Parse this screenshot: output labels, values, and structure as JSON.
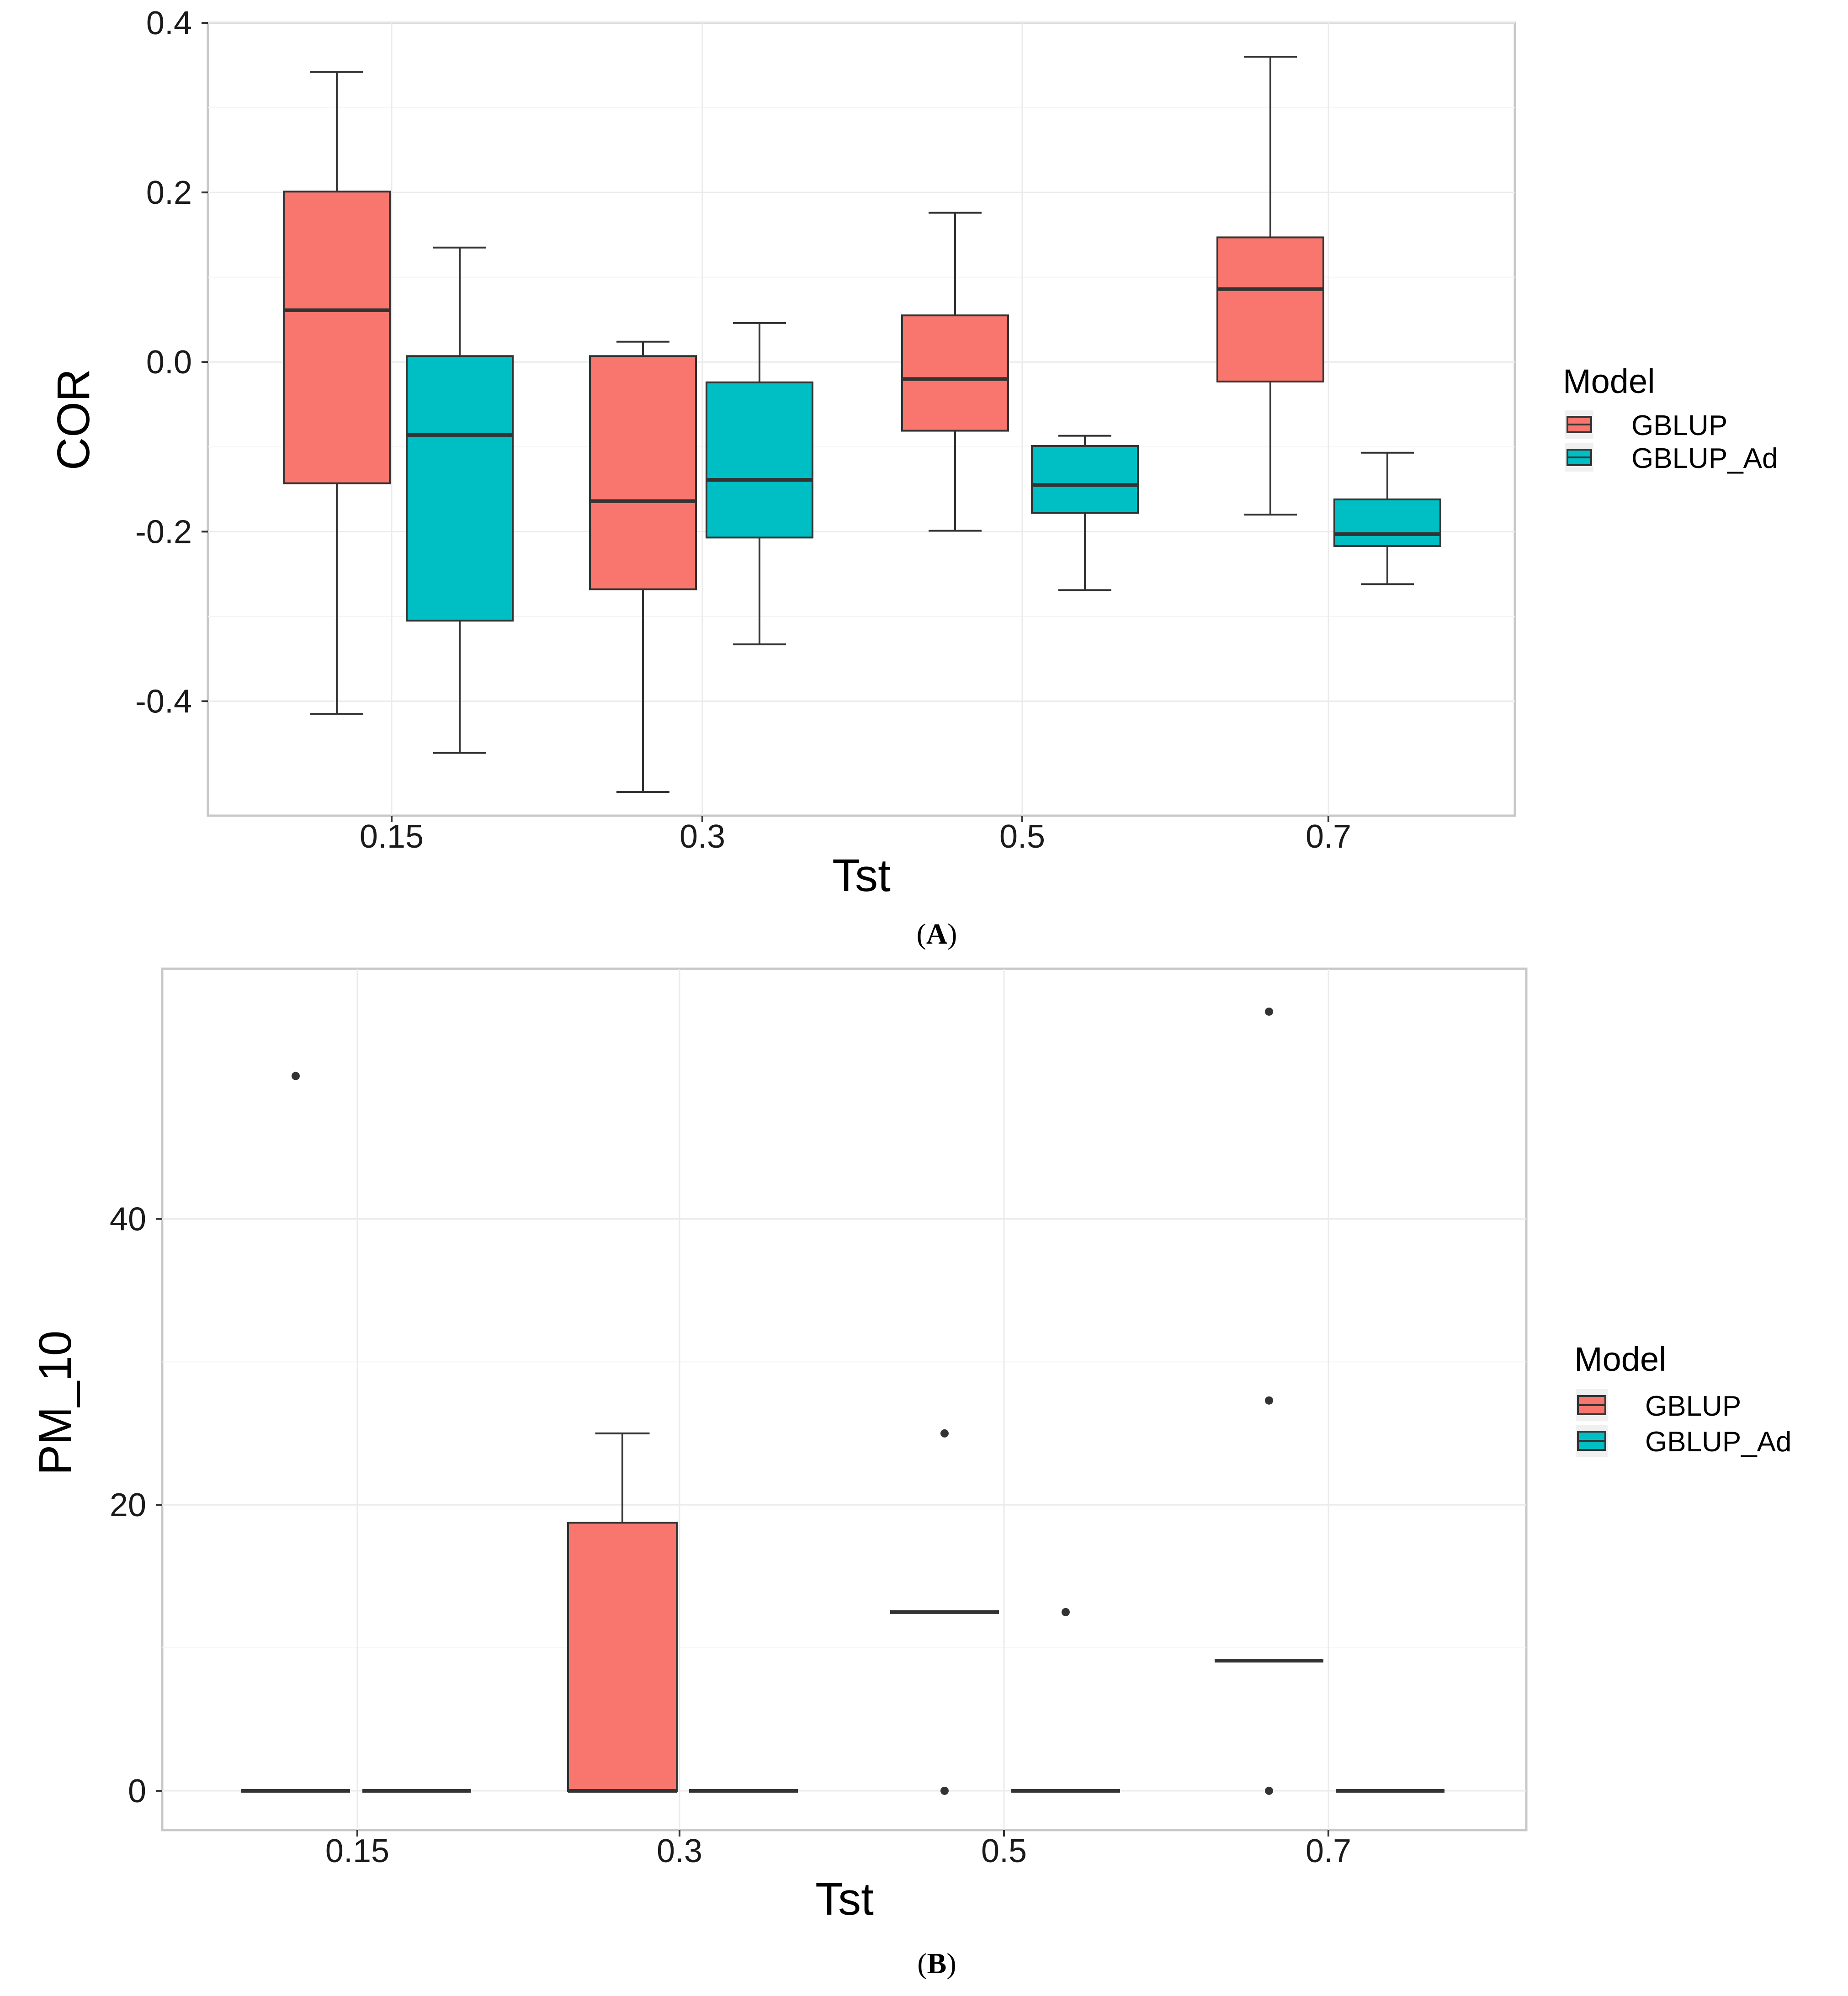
{
  "chart_data": [
    {
      "panel": "A",
      "type": "box",
      "xlabel": "Tst",
      "ylabel": "COR",
      "categories": [
        "0.15",
        "0.3",
        "0.5",
        "0.7"
      ],
      "y_ticks": [
        {
          "value": -0.4,
          "label": "-0.4"
        },
        {
          "value": -0.2,
          "label": "-0.2"
        },
        {
          "value": 0.0,
          "label": "0.0"
        },
        {
          "value": 0.2,
          "label": "0.2"
        },
        {
          "value": 0.4,
          "label": "0.4"
        }
      ],
      "ylim": [
        -0.535,
        0.4
      ],
      "legend": {
        "title": "Model",
        "entries": [
          "GBLUP",
          "GBLUP_Ad"
        ],
        "position": "right"
      },
      "colors": {
        "GBLUP": "#F8766D",
        "GBLUP_Ad": "#00BFC4"
      },
      "series": [
        {
          "name": "GBLUP",
          "boxes": [
            {
              "min": -0.415,
              "q1": -0.143,
              "median": 0.061,
              "q3": 0.201,
              "max": 0.342,
              "outliers": []
            },
            {
              "min": -0.507,
              "q1": -0.268,
              "median": -0.164,
              "q3": 0.007,
              "max": 0.024,
              "outliers": []
            },
            {
              "min": -0.199,
              "q1": -0.081,
              "median": -0.02,
              "q3": 0.055,
              "max": 0.176,
              "outliers": []
            },
            {
              "min": -0.18,
              "q1": -0.023,
              "median": 0.086,
              "q3": 0.147,
              "max": 0.36,
              "outliers": []
            }
          ]
        },
        {
          "name": "GBLUP_Ad",
          "boxes": [
            {
              "min": -0.461,
              "q1": -0.305,
              "median": -0.086,
              "q3": 0.007,
              "max": 0.135,
              "outliers": []
            },
            {
              "min": -0.333,
              "q1": -0.207,
              "median": -0.139,
              "q3": -0.024,
              "max": 0.046,
              "outliers": []
            },
            {
              "min": -0.269,
              "q1": -0.178,
              "median": -0.145,
              "q3": -0.099,
              "max": -0.087,
              "outliers": []
            },
            {
              "min": -0.262,
              "q1": -0.217,
              "median": -0.203,
              "q3": -0.162,
              "max": -0.107,
              "outliers": []
            }
          ]
        }
      ]
    },
    {
      "panel": "B",
      "type": "box",
      "xlabel": "Tst",
      "ylabel": "PM_10",
      "categories": [
        "0.15",
        "0.3",
        "0.5",
        "0.7"
      ],
      "y_ticks": [
        {
          "value": 0,
          "label": "0"
        },
        {
          "value": 20,
          "label": "20"
        },
        {
          "value": 40,
          "label": "40"
        }
      ],
      "ylim": [
        -2.75,
        57.5
      ],
      "legend": {
        "title": "Model",
        "entries": [
          "GBLUP",
          "GBLUP_Ad"
        ],
        "position": "right"
      },
      "colors": {
        "GBLUP": "#F8766D",
        "GBLUP_Ad": "#00BFC4"
      },
      "series": [
        {
          "name": "GBLUP",
          "boxes": [
            {
              "min": 0,
              "q1": 0,
              "median": 0,
              "q3": 0,
              "max": 0,
              "outliers": [
                50
              ]
            },
            {
              "min": 0,
              "q1": 0,
              "median": 0,
              "q3": 18.75,
              "max": 25,
              "outliers": []
            },
            {
              "min": 12.5,
              "q1": 12.5,
              "median": 12.5,
              "q3": 12.5,
              "max": 12.5,
              "outliers": [
                0,
                25
              ]
            },
            {
              "min": 9.1,
              "q1": 9.1,
              "median": 9.1,
              "q3": 9.1,
              "max": 9.1,
              "outliers": [
                0,
                27.3,
                54.5
              ]
            }
          ]
        },
        {
          "name": "GBLUP_Ad",
          "boxes": [
            {
              "min": 0,
              "q1": 0,
              "median": 0,
              "q3": 0,
              "max": 0,
              "outliers": []
            },
            {
              "min": 0,
              "q1": 0,
              "median": 0,
              "q3": 0,
              "max": 0,
              "outliers": []
            },
            {
              "min": 0,
              "q1": 0,
              "median": 0,
              "q3": 0,
              "max": 0,
              "outliers": [
                12.5
              ]
            },
            {
              "min": 0,
              "q1": 0,
              "median": 0,
              "q3": 0,
              "max": 0,
              "outliers": []
            }
          ]
        }
      ]
    }
  ]
}
